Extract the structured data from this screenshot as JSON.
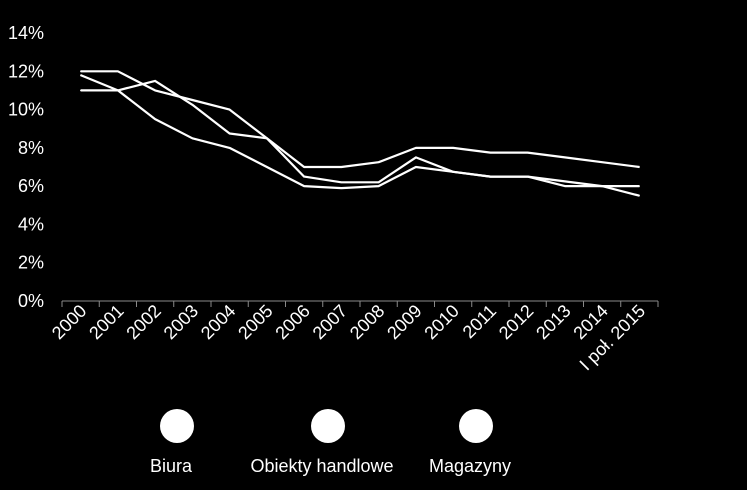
{
  "chart_data": {
    "type": "line",
    "categories": [
      "2000",
      "2001",
      "2002",
      "2003",
      "2004",
      "2005",
      "2006",
      "2007",
      "2008",
      "2009",
      "2010",
      "2011",
      "2012",
      "2013",
      "2014",
      "I poł. 2015"
    ],
    "y_tick_labels": [
      "0%",
      "2%",
      "4%",
      "6%",
      "8%",
      "10%",
      "12%",
      "14%"
    ],
    "ylim": [
      0,
      14
    ],
    "grid": false,
    "legend_position": "bottom",
    "line_color": "#ffffff",
    "background": "#000000",
    "series": [
      {
        "name": "Biura",
        "values": [
          11.8,
          11.0,
          9.5,
          8.5,
          8.0,
          7.0,
          6.0,
          5.9,
          6.0,
          7.0,
          6.75,
          6.5,
          6.5,
          6.25,
          6.0,
          6.0
        ]
      },
      {
        "name": "Obiekty handlowe",
        "values": [
          11.0,
          11.0,
          11.5,
          10.25,
          8.75,
          8.5,
          6.5,
          6.2,
          6.2,
          7.5,
          6.75,
          6.5,
          6.5,
          6.0,
          6.0,
          5.5
        ]
      },
      {
        "name": "Magazyny",
        "values": [
          12.0,
          12.0,
          11.0,
          10.5,
          10.0,
          8.5,
          7.0,
          7.0,
          7.25,
          8.0,
          8.0,
          7.75,
          7.75,
          7.5,
          7.25,
          7.0
        ]
      }
    ]
  }
}
